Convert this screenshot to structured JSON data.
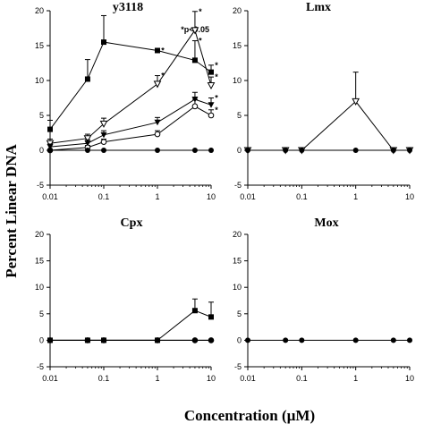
{
  "figure": {
    "ylabel": "Percent Linear DNA",
    "xlabel": "Concentration (µM)"
  },
  "chart_data": [
    {
      "type": "line",
      "title": "y3118",
      "annotation": "*p<0.05",
      "x_scale": "log",
      "xlim": [
        0.01,
        10
      ],
      "ylim": [
        -5,
        20
      ],
      "x_ticks": [
        "0.01",
        "0.1",
        "1",
        "10"
      ],
      "y_ticks": [
        "-5",
        "0",
        "5",
        "10",
        "15",
        "20"
      ],
      "x": [
        0.01,
        0.05,
        0.1,
        1,
        5,
        10
      ],
      "series": [
        {
          "marker": "filled-square",
          "values": [
            3,
            10.2,
            15.5,
            14.3,
            12.9,
            11.2
          ],
          "errors": [
            1.3,
            2.8,
            3.8,
            0,
            2.8,
            1.0
          ],
          "significant": [
            false,
            false,
            false,
            true,
            true,
            true
          ]
        },
        {
          "marker": "open-down-triangle",
          "values": [
            1,
            1.7,
            3.8,
            9.5,
            17.2,
            9.3
          ],
          "errors": [
            0.6,
            0.6,
            0.8,
            1.2,
            2.7,
            1.2
          ],
          "significant": [
            false,
            false,
            false,
            true,
            true,
            true
          ]
        },
        {
          "marker": "filled-down-triangle",
          "values": [
            0.5,
            1,
            2.2,
            4,
            7.3,
            6.5
          ],
          "errors": [
            0.4,
            0.5,
            0.6,
            0.7,
            1.0,
            1.0
          ],
          "significant": [
            false,
            false,
            false,
            false,
            false,
            true
          ]
        },
        {
          "marker": "open-circle",
          "values": [
            0,
            0.4,
            1.2,
            2.3,
            6.3,
            5
          ],
          "errors": [
            0,
            0.3,
            0.4,
            0.5,
            1.0,
            0.8
          ],
          "significant": [
            false,
            false,
            false,
            false,
            false,
            true
          ]
        },
        {
          "marker": "filled-circle",
          "values": [
            0,
            0,
            0,
            0,
            0,
            0
          ],
          "errors": [
            0,
            0,
            0,
            0,
            0,
            0
          ],
          "significant": [
            false,
            false,
            false,
            false,
            false,
            false
          ]
        }
      ]
    },
    {
      "type": "line",
      "title": "Lmx",
      "x_scale": "log",
      "xlim": [
        0.01,
        10
      ],
      "ylim": [
        -5,
        20
      ],
      "x_ticks": [
        "0.01",
        "0.1",
        "1",
        "10"
      ],
      "y_ticks": [
        "-5",
        "0",
        "5",
        "10",
        "15",
        "20"
      ],
      "x": [
        0.01,
        0.05,
        0.1,
        1,
        5,
        10
      ],
      "series": [
        {
          "marker": "open-down-triangle",
          "values": [
            0,
            0,
            0,
            7,
            0,
            0
          ],
          "errors": [
            0,
            0,
            0,
            4.2,
            0,
            0
          ]
        },
        {
          "marker": "filled-circle",
          "values": [
            0,
            0,
            0,
            0,
            0,
            0
          ],
          "errors": [
            0,
            0,
            0,
            0,
            0,
            0
          ]
        }
      ]
    },
    {
      "type": "line",
      "title": "Cpx",
      "x_scale": "log",
      "xlim": [
        0.01,
        10
      ],
      "ylim": [
        -5,
        20
      ],
      "x_ticks": [
        "0.01",
        "0.1",
        "1",
        "10"
      ],
      "y_ticks": [
        "-5",
        "0",
        "5",
        "10",
        "15",
        "20"
      ],
      "x": [
        0.01,
        0.05,
        0.1,
        1,
        5,
        10
      ],
      "series": [
        {
          "marker": "filled-square",
          "values": [
            0,
            0,
            0,
            0,
            5.6,
            4.4
          ],
          "errors": [
            0,
            0,
            0,
            0,
            2.2,
            2.8
          ]
        },
        {
          "marker": "open-circle",
          "values": [
            0,
            0,
            0,
            0,
            0,
            0
          ],
          "errors": [
            0,
            0,
            0,
            0,
            0,
            0
          ]
        },
        {
          "marker": "filled-circle",
          "values": [
            0,
            0,
            0,
            0,
            0,
            0
          ],
          "errors": [
            0,
            0,
            0,
            0,
            0,
            0
          ]
        }
      ]
    },
    {
      "type": "line",
      "title": "Mox",
      "x_scale": "log",
      "xlim": [
        0.01,
        10
      ],
      "ylim": [
        -5,
        20
      ],
      "x_ticks": [
        "0.01",
        "0.1",
        "1",
        "10"
      ],
      "y_ticks": [
        "-5",
        "0",
        "5",
        "10",
        "15",
        "20"
      ],
      "x": [
        0.01,
        0.05,
        0.1,
        1,
        5,
        10
      ],
      "series": [
        {
          "marker": "filled-circle",
          "values": [
            0,
            0,
            0,
            0,
            0,
            0
          ],
          "errors": [
            0,
            0,
            0,
            0,
            0,
            0
          ]
        }
      ]
    }
  ]
}
